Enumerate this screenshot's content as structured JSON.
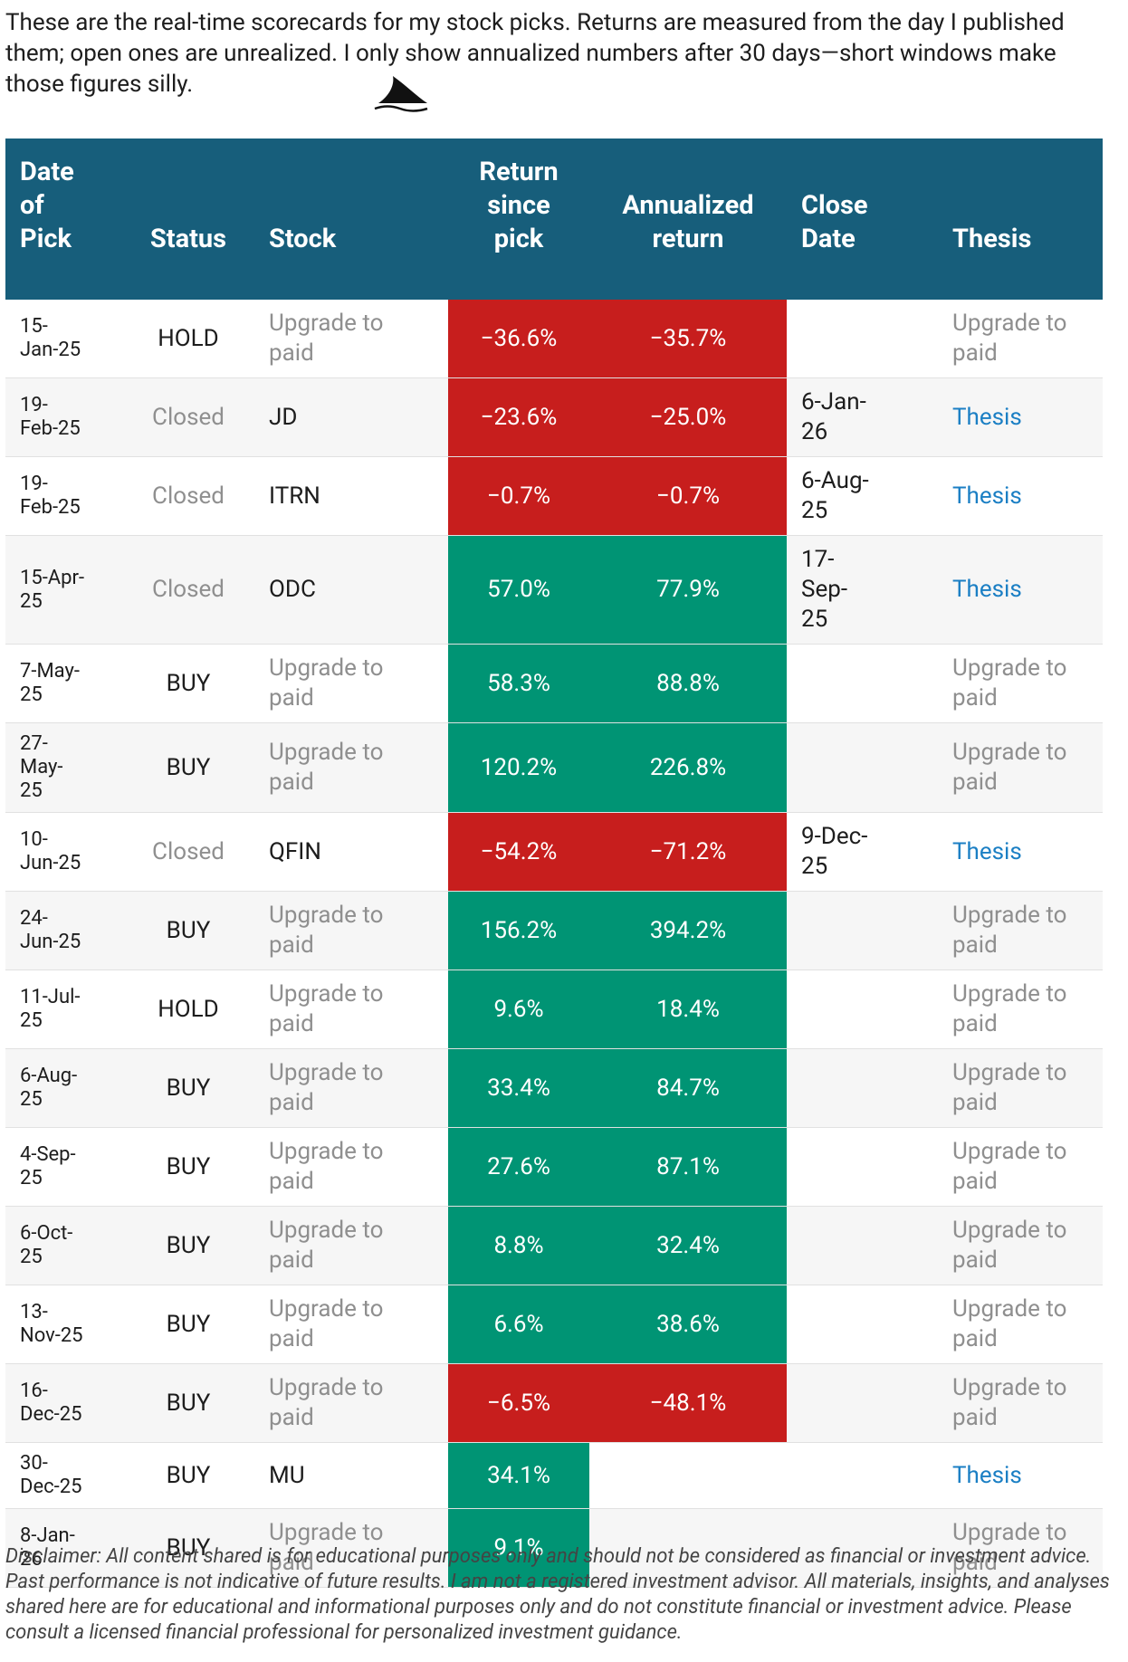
{
  "intro": "These are the real-time scorecards for my stock picks. Returns are measured from the day I published them; open ones are unrealized. I only show annualized numbers after 30 days—short windows make those figures silly.",
  "table": {
    "headers": [
      [
        "Date",
        "of",
        "Pick"
      ],
      [
        "Status"
      ],
      [
        "Stock"
      ],
      [
        "Return",
        "since",
        "pick"
      ],
      [
        "Annualized",
        "return"
      ],
      [
        "Close",
        "Date"
      ],
      [
        "Thesis"
      ]
    ],
    "positive_color": "#009474",
    "negative_color": "#c71e1d",
    "header_color": "#175e7b",
    "rows": [
      {
        "date": "15-Jan-25",
        "status": "HOLD",
        "stock": "Upgrade to paid",
        "return": "−36.6%",
        "annualized": "−35.7%",
        "thesis": "Upgrade to paid"
      },
      {
        "date": "19-Feb-25",
        "status": "Closed",
        "stock": "JD",
        "return": "−23.6%",
        "annualized": "−25.0%",
        "close": "6-Jan-26",
        "thesis": "Thesis"
      },
      {
        "date": "19-Feb-25",
        "status": "Closed",
        "stock": "ITRN",
        "return": "−0.7%",
        "annualized": "−0.7%",
        "close": "6-Aug-25",
        "thesis": "Thesis"
      },
      {
        "date": "15-Apr-25",
        "status": "Closed",
        "stock": "ODC",
        "return": "57.0%",
        "annualized": "77.9%",
        "close": "17-Sep-25",
        "thesis": "Thesis"
      },
      {
        "date": "7-May-25",
        "status": "BUY",
        "stock": "Upgrade to paid",
        "return": "58.3%",
        "annualized": "88.8%",
        "thesis": "Upgrade to paid"
      },
      {
        "date": "27-May-25",
        "status": "BUY",
        "stock": "Upgrade to paid",
        "return": "120.2%",
        "annualized": "226.8%",
        "thesis": "Upgrade to paid"
      },
      {
        "date": "10-Jun-25",
        "status": "Closed",
        "stock": "QFIN",
        "return": "−54.2%",
        "annualized": "−71.2%",
        "close": "9-Dec-25",
        "thesis": "Thesis"
      },
      {
        "date": "24-Jun-25",
        "status": "BUY",
        "stock": "Upgrade to paid",
        "return": "156.2%",
        "annualized": "394.2%",
        "thesis": "Upgrade to paid"
      },
      {
        "date": "11-Jul-25",
        "status": "HOLD",
        "stock": "Upgrade to paid",
        "return": "9.6%",
        "annualized": "18.4%",
        "thesis": "Upgrade to paid"
      },
      {
        "date": "6-Aug-25",
        "status": "BUY",
        "stock": "Upgrade to paid",
        "return": "33.4%",
        "annualized": "84.7%",
        "thesis": "Upgrade to paid"
      },
      {
        "date": "4-Sep-25",
        "status": "BUY",
        "stock": "Upgrade to paid",
        "return": "27.6%",
        "annualized": "87.1%",
        "thesis": "Upgrade to paid"
      },
      {
        "date": "6-Oct-25",
        "status": "BUY",
        "stock": "Upgrade to paid",
        "return": "8.8%",
        "annualized": "32.4%",
        "thesis": "Upgrade to paid"
      },
      {
        "date": "13-Nov-25",
        "status": "BUY",
        "stock": "Upgrade to paid",
        "return": "6.6%",
        "annualized": "38.6%",
        "thesis": "Upgrade to paid"
      },
      {
        "date": "16-Dec-25",
        "status": "BUY",
        "stock": "Upgrade to paid",
        "return": "−6.5%",
        "annualized": "−48.1%",
        "thesis": "Upgrade to paid"
      },
      {
        "date": "30-Dec-25",
        "status": "BUY",
        "stock": "MU",
        "return": "34.1%",
        "thesis": "Thesis"
      },
      {
        "date": "8-Jan-26",
        "status": "BUY",
        "stock": "Upgrade to paid",
        "return": "9.1%",
        "thesis": "Upgrade to paid"
      }
    ]
  },
  "disclaimer": "Disclaimer: All content shared is for educational purposes only and should not be considered as financial or investment advice. Past performance is not indicative of future results. I am not a registered investment advisor. All materials, insights, and analyses shared here are for educational and informational purposes only and do not constitute financial or investment advice. Please consult a licensed financial professional for personalized investment guidance."
}
